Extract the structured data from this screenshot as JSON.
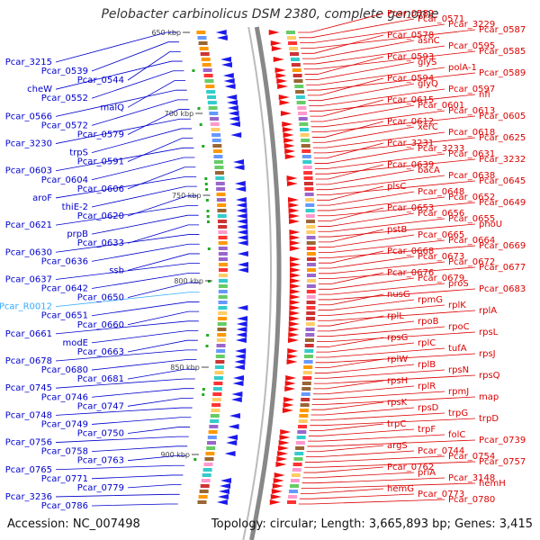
{
  "title": "Pelobacter carbinolicus DSM 2380, complete genome",
  "accession": "Accession: NC_007498",
  "summary": "Topology: circular; Length: 3,665,893 bp; Genes: 3,415",
  "colors": {
    "left_label": "#0000cc",
    "right_label": "#dd0000",
    "highlight": "#33aaff",
    "tick": "#444444"
  },
  "ticks": [
    "650 kbp",
    "700 kbp",
    "750 kbp",
    "800 kbp",
    "850 kbp",
    "900 kbp"
  ],
  "left_labels": [
    "Pcar_3215",
    "Pcar_0539",
    "Pcar_0544",
    "cheW",
    "Pcar_0552",
    "malQ",
    "Pcar_0566",
    "Pcar_0572",
    "Pcar_0579",
    "Pcar_3230",
    "trpS",
    "Pcar_0591",
    "Pcar_0603",
    "Pcar_0604",
    "Pcar_0606",
    "aroF",
    "thiE-2",
    "Pcar_0620",
    "Pcar_0621",
    "prpB",
    "Pcar_0633",
    "Pcar_0630",
    "Pcar_0636",
    "ssb",
    "Pcar_0637",
    "Pcar_0642",
    "Pcar_0650",
    "Pcar_R0012",
    "Pcar_0651",
    "Pcar_0660",
    "Pcar_0661",
    "modE",
    "Pcar_0663",
    "Pcar_0678",
    "Pcar_0680",
    "Pcar_0681",
    "Pcar_0745",
    "Pcar_0746",
    "Pcar_0747",
    "Pcar_0748",
    "Pcar_0749",
    "Pcar_0750",
    "Pcar_0756",
    "Pcar_0758",
    "Pcar_0763",
    "Pcar_0765",
    "Pcar_0771",
    "Pcar_0779",
    "Pcar_3236",
    "Pcar_0786"
  ],
  "right_labels": [
    "Pcar_0582",
    "Pcar_0571",
    "Pcar_3229",
    "Pcar_0587",
    "Pcar_0578",
    "asnC",
    "Pcar_0595",
    "Pcar_0585",
    "Pcar_0593",
    "glyS",
    "polA-1",
    "Pcar_0589",
    "Pcar_0594",
    "glyQ",
    "Pcar_0597",
    "nfi",
    "Pcar_0615",
    "Pcar_0601",
    "Pcar_0613",
    "Pcar_0605",
    "Pcar_0612",
    "xerC",
    "Pcar_0618",
    "Pcar_0625",
    "Pcar_3231",
    "Pcar_3233",
    "Pcar_0631",
    "Pcar_3232",
    "Pcar_0639",
    "bacA",
    "Pcar_0638",
    "Pcar_0645",
    "plsC",
    "Pcar_0648",
    "Pcar_0652",
    "Pcar_0649",
    "Pcar_0653",
    "Pcar_0656",
    "Pcar_0655",
    "phoU",
    "pstB",
    "Pcar_0665",
    "Pcar_0664",
    "Pcar_0669",
    "Pcar_0668",
    "Pcar_0673",
    "Pcar_0672",
    "Pcar_0677",
    "Pcar_0676",
    "Pcar_0679",
    "proS",
    "Pcar_0683",
    "nusG",
    "rpmG",
    "rplK",
    "rplA",
    "rplL",
    "rpoB",
    "rpoC",
    "rpsL",
    "rpsG",
    "rplC",
    "tufA",
    "rpsJ",
    "rplW",
    "rplB",
    "rpsN",
    "rpsQ",
    "rpsH",
    "rplR",
    "rpmJ",
    "map",
    "rpsK",
    "rpsD",
    "trpG",
    "trpD",
    "trpC",
    "trpF",
    "folC",
    "Pcar_0739",
    "argS",
    "Pcar_0744",
    "Pcar_0754",
    "Pcar_0757",
    "Pcar_0762",
    "priA",
    "Pcar_3148",
    "hemH",
    "hemG",
    "Pcar_0773",
    "Pcar_0780"
  ]
}
